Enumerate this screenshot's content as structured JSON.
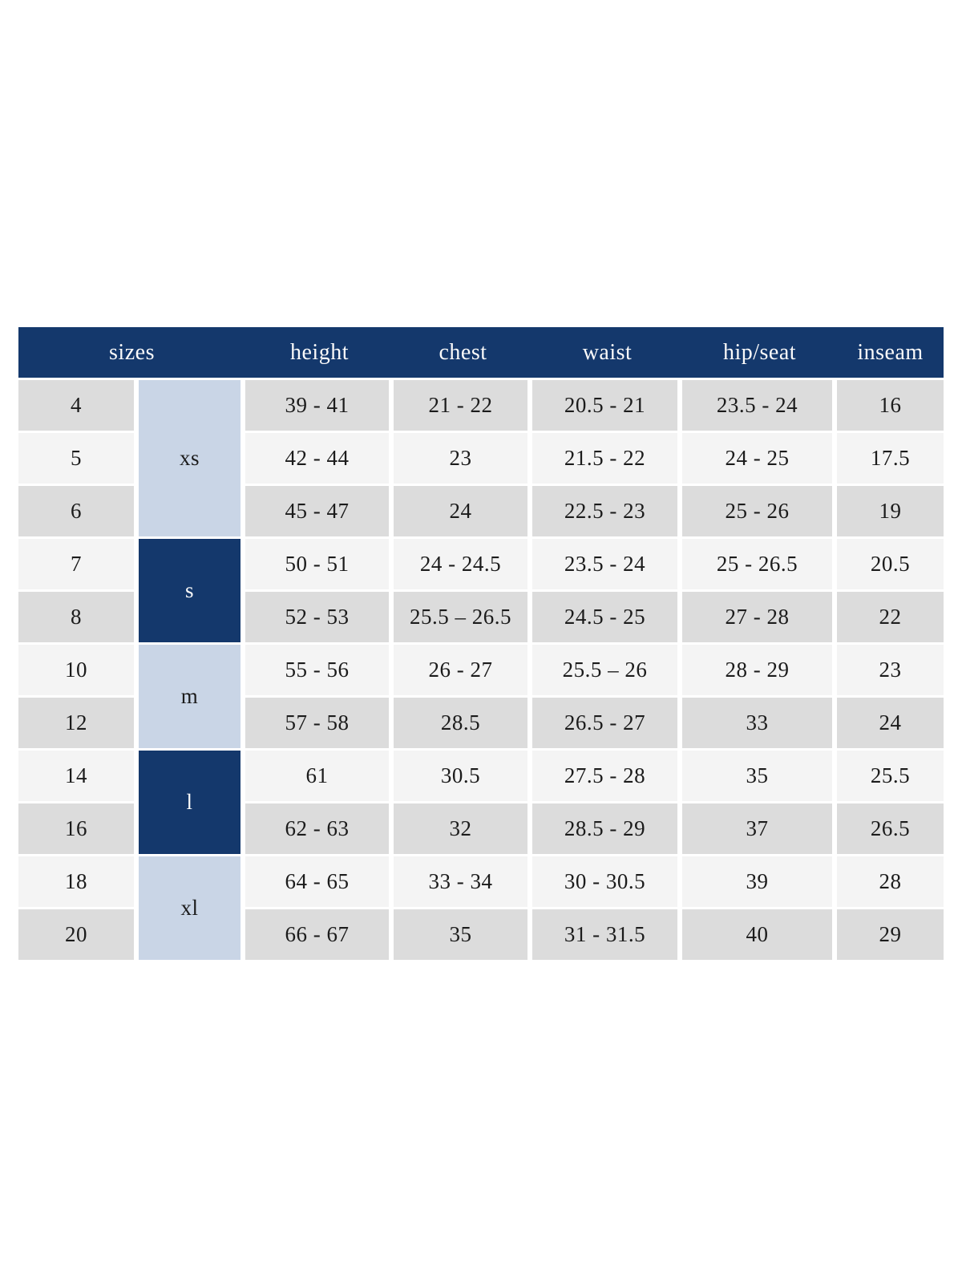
{
  "colors": {
    "navy": "#14386C",
    "light_blue": "#C9D5E6",
    "row_gray": "#DCDCDC",
    "row_light": "#F4F4F4",
    "text_dark": "#1B1B1B",
    "header_text": "#FAFAFA"
  },
  "chart_data": {
    "type": "table",
    "header": {
      "sizes": "sizes",
      "height": "height",
      "chest": "chest",
      "waist": "waist",
      "hip_seat": "hip/seat",
      "inseam": "inseam"
    },
    "size_groups": [
      {
        "label": "xs",
        "sizes": [
          "4",
          "5",
          "6"
        ]
      },
      {
        "label": "s",
        "sizes": [
          "7",
          "8"
        ]
      },
      {
        "label": "m",
        "sizes": [
          "10",
          "12"
        ]
      },
      {
        "label": "l",
        "sizes": [
          "14",
          "16"
        ]
      },
      {
        "label": "xl",
        "sizes": [
          "18",
          "20"
        ]
      }
    ],
    "rows": [
      {
        "size": "4",
        "group": "xs",
        "height": "39 - 41",
        "chest": "21 - 22",
        "waist": "20.5 - 21",
        "hip_seat": "23.5 - 24",
        "inseam": "16"
      },
      {
        "size": "5",
        "group": "xs",
        "height": "42 - 44",
        "chest": "23",
        "waist": "21.5 - 22",
        "hip_seat": "24 - 25",
        "inseam": "17.5"
      },
      {
        "size": "6",
        "group": "xs",
        "height": "45 - 47",
        "chest": "24",
        "waist": "22.5 - 23",
        "hip_seat": "25 - 26",
        "inseam": "19"
      },
      {
        "size": "7",
        "group": "s",
        "height": "50 - 51",
        "chest": "24 - 24.5",
        "waist": "23.5 - 24",
        "hip_seat": "25 - 26.5",
        "inseam": "20.5"
      },
      {
        "size": "8",
        "group": "s",
        "height": "52 - 53",
        "chest": "25.5 – 26.5",
        "waist": "24.5 - 25",
        "hip_seat": "27 - 28",
        "inseam": "22"
      },
      {
        "size": "10",
        "group": "m",
        "height": "55 - 56",
        "chest": "26 - 27",
        "waist": "25.5 – 26",
        "hip_seat": "28 - 29",
        "inseam": "23"
      },
      {
        "size": "12",
        "group": "m",
        "height": "57 - 58",
        "chest": "28.5",
        "waist": "26.5 - 27",
        "hip_seat": "33",
        "inseam": "24"
      },
      {
        "size": "14",
        "group": "l",
        "height": "61",
        "chest": "30.5",
        "waist": "27.5 - 28",
        "hip_seat": "35",
        "inseam": "25.5"
      },
      {
        "size": "16",
        "group": "l",
        "height": "62 - 63",
        "chest": "32",
        "waist": "28.5 - 29",
        "hip_seat": "37",
        "inseam": "26.5"
      },
      {
        "size": "18",
        "group": "xl",
        "height": "64 - 65",
        "chest": "33 - 34",
        "waist": "30 - 30.5",
        "hip_seat": "39",
        "inseam": "28"
      },
      {
        "size": "20",
        "group": "xl",
        "height": "66 - 67",
        "chest": "35",
        "waist": "31 - 31.5",
        "hip_seat": "40",
        "inseam": "29"
      }
    ]
  }
}
